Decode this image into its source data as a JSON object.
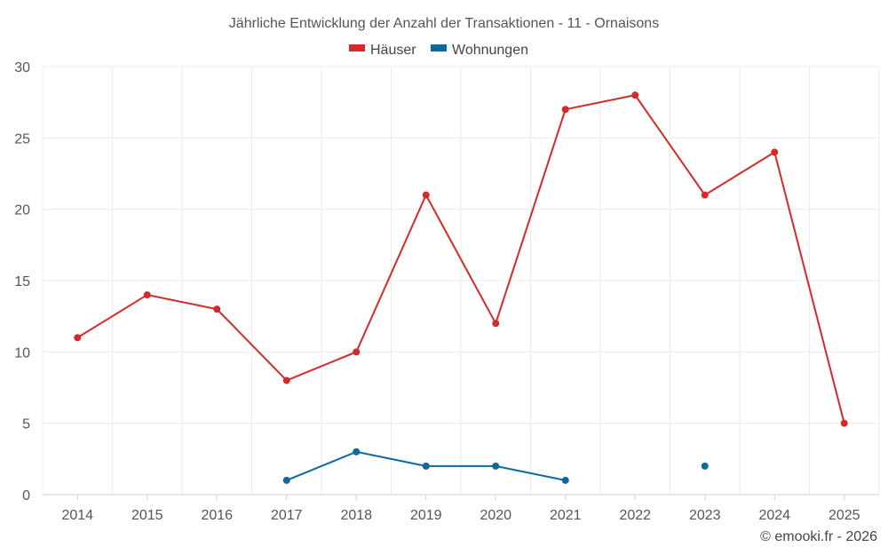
{
  "chart_data": {
    "type": "line",
    "title": "Jährliche Entwicklung der Anzahl der Transaktionen - 11 - Ornaisons",
    "xlabel": "",
    "ylabel": "",
    "categories": [
      "2014",
      "2015",
      "2016",
      "2017",
      "2018",
      "2019",
      "2020",
      "2021",
      "2022",
      "2023",
      "2024",
      "2025"
    ],
    "ylim": [
      0,
      30
    ],
    "yticks": [
      0,
      5,
      10,
      15,
      20,
      25,
      30
    ],
    "grid": true,
    "legend_position": "top-center",
    "series": [
      {
        "name": "Häuser",
        "color": "#d32a2a",
        "values": [
          11,
          14,
          13,
          8,
          10,
          21,
          12,
          27,
          28,
          21,
          24,
          5
        ]
      },
      {
        "name": "Wohnungen",
        "color": "#0a6a9e",
        "values": [
          null,
          null,
          null,
          1,
          3,
          2,
          2,
          1,
          null,
          2,
          null,
          null
        ]
      }
    ]
  },
  "credit": "© emooki.fr - 2026"
}
